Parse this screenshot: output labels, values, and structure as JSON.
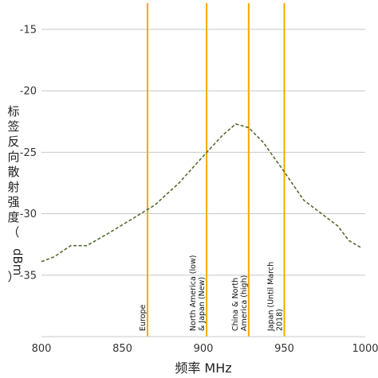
{
  "chart_data": {
    "type": "line",
    "title": "",
    "xlabel": "频率 MHz",
    "ylabel": [
      "标",
      "签",
      "反",
      "向",
      "散",
      "射",
      "强",
      "度",
      "（",
      "dBm",
      "）"
    ],
    "xlim": [
      800,
      1000
    ],
    "ylim": [
      -40,
      -13
    ],
    "x_ticks": [
      800,
      850,
      900,
      950,
      1000
    ],
    "y_ticks": [
      -15,
      -20,
      -25,
      -30,
      -35
    ],
    "grid": "horizontal",
    "line_color": "#556b2f",
    "marker_color": "#f5a800",
    "series": [
      {
        "x": [
          800,
          808,
          818,
          828,
          840,
          855,
          870,
          885,
          900,
          912,
          920,
          928,
          937,
          950,
          962,
          975,
          983,
          990,
          998
        ],
        "y": [
          -33.9,
          -33.5,
          -32.6,
          -32.6,
          -31.7,
          -30.5,
          -29.3,
          -27.5,
          -25.3,
          -23.6,
          -22.7,
          -23.0,
          -24.2,
          -26.6,
          -28.9,
          -30.2,
          -31.0,
          -32.2,
          -32.8
        ]
      }
    ],
    "vertical_markers": [
      {
        "x": 865.5,
        "label_lines": [
          "Europe"
        ]
      },
      {
        "x": 902,
        "label_lines": [
          "North America (low)",
          "& Japan (New)"
        ]
      },
      {
        "x": 928,
        "label_lines": [
          "China & North",
          "America (high)"
        ]
      },
      {
        "x": 950,
        "label_lines": [
          "Japan (Until March",
          "2018)"
        ]
      }
    ]
  }
}
